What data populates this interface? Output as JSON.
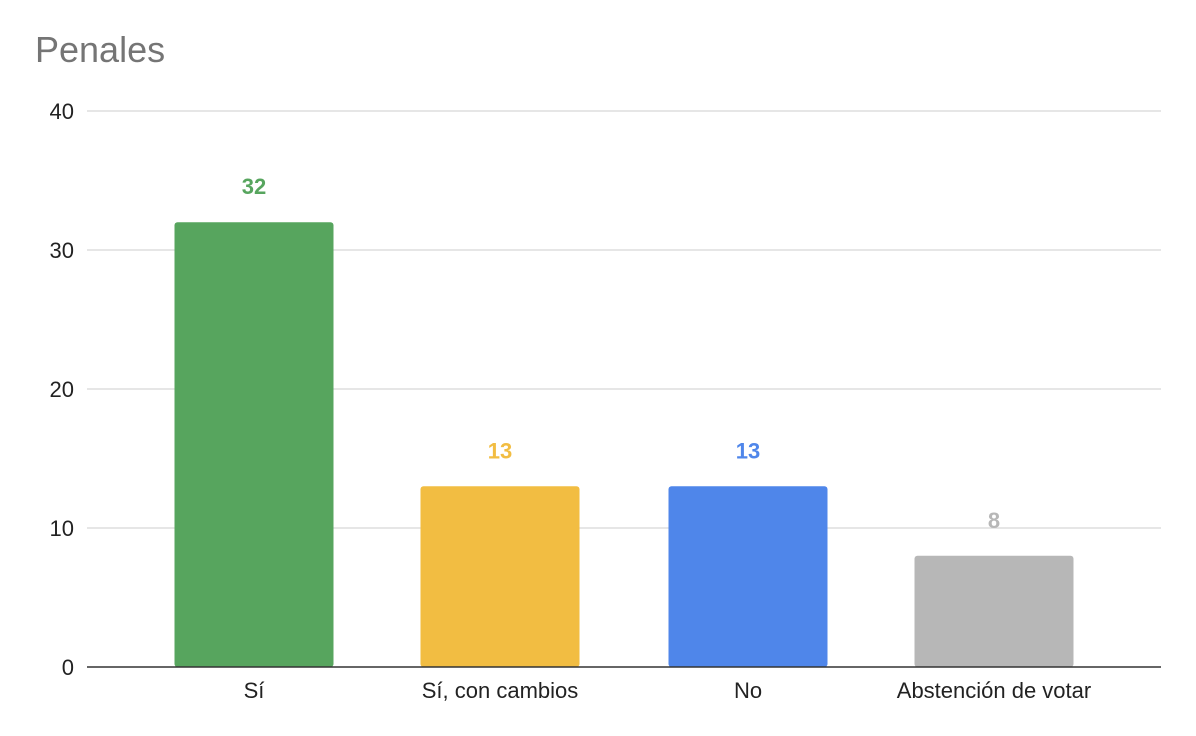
{
  "chart_data": {
    "type": "bar",
    "title": "Penales",
    "xlabel": "",
    "ylabel": "",
    "categories": [
      "Sí",
      "Sí, con cambios",
      "No",
      "Abstención de votar"
    ],
    "values": [
      32,
      13,
      13,
      8
    ],
    "data_labels": [
      "32",
      "13",
      "13",
      "8"
    ],
    "colors": [
      "#57a55e",
      "#f2bd42",
      "#4f86ea",
      "#b7b7b7"
    ],
    "ylim": [
      0,
      40
    ],
    "yticks": [
      0,
      10,
      20,
      30,
      40
    ],
    "ytick_labels": [
      "0",
      "10",
      "20",
      "30",
      "40"
    ],
    "grid": true,
    "legend": "none"
  }
}
